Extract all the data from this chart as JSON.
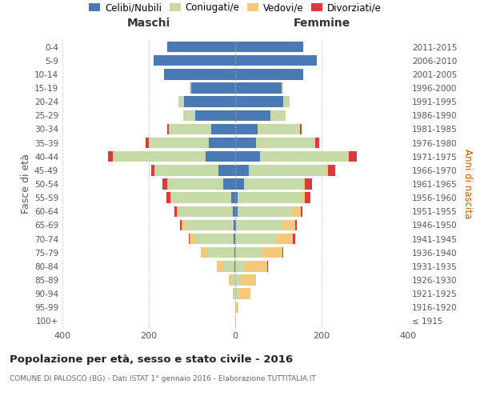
{
  "age_groups": [
    "100+",
    "95-99",
    "90-94",
    "85-89",
    "80-84",
    "75-79",
    "70-74",
    "65-69",
    "60-64",
    "55-59",
    "50-54",
    "45-49",
    "40-44",
    "35-39",
    "30-34",
    "25-29",
    "20-24",
    "15-19",
    "10-14",
    "5-9",
    "0-4"
  ],
  "birth_years": [
    "≤ 1915",
    "1916-1920",
    "1921-1925",
    "1926-1930",
    "1931-1935",
    "1936-1940",
    "1941-1945",
    "1946-1950",
    "1951-1955",
    "1956-1960",
    "1961-1965",
    "1966-1970",
    "1971-1975",
    "1976-1980",
    "1981-1985",
    "1986-1990",
    "1991-1995",
    "1996-2000",
    "2001-2005",
    "2006-2010",
    "2011-2015"
  ],
  "male": {
    "celibi": [
      0,
      0,
      0,
      0,
      2,
      2,
      3,
      4,
      6,
      10,
      28,
      38,
      68,
      62,
      55,
      92,
      118,
      102,
      165,
      188,
      158
    ],
    "coniugati": [
      0,
      0,
      3,
      10,
      25,
      62,
      90,
      112,
      125,
      138,
      128,
      148,
      215,
      138,
      98,
      28,
      14,
      4,
      0,
      0,
      0
    ],
    "vedovi": [
      0,
      0,
      2,
      5,
      15,
      15,
      12,
      8,
      4,
      2,
      2,
      1,
      0,
      0,
      0,
      0,
      0,
      0,
      0,
      0,
      0
    ],
    "divorziati": [
      0,
      0,
      0,
      0,
      0,
      0,
      2,
      4,
      6,
      10,
      10,
      8,
      12,
      8,
      4,
      0,
      0,
      0,
      0,
      0,
      0
    ]
  },
  "female": {
    "nubili": [
      0,
      0,
      0,
      0,
      0,
      0,
      0,
      2,
      5,
      6,
      20,
      32,
      58,
      48,
      52,
      82,
      112,
      108,
      158,
      188,
      158
    ],
    "coniugate": [
      0,
      2,
      8,
      14,
      22,
      62,
      95,
      108,
      128,
      148,
      138,
      178,
      205,
      138,
      98,
      34,
      14,
      4,
      0,
      0,
      0
    ],
    "vedove": [
      0,
      5,
      28,
      35,
      52,
      48,
      38,
      28,
      18,
      8,
      4,
      4,
      0,
      0,
      0,
      0,
      0,
      0,
      0,
      0,
      0
    ],
    "divorziate": [
      0,
      0,
      0,
      0,
      2,
      2,
      5,
      5,
      5,
      12,
      15,
      18,
      18,
      8,
      4,
      0,
      0,
      0,
      0,
      0,
      0
    ]
  },
  "colors": {
    "celibi": "#4a7ab5",
    "coniugati": "#c8d9a8",
    "vedovi": "#f5c97a",
    "divorziati": "#d93b3b"
  },
  "xlim": 400,
  "title": "Popolazione per età, sesso e stato civile - 2016",
  "subtitle": "COMUNE DI PALOSCO (BG) - Dati ISTAT 1° gennaio 2016 - Elaborazione TUTTITALIA.IT",
  "ylabel_left": "Fasce di età",
  "ylabel_right": "Anni di nascita",
  "label_maschi": "Maschi",
  "label_femmine": "Femmine",
  "legend_labels": [
    "Celibi/Nubili",
    "Coniugati/e",
    "Vedovi/e",
    "Divorziati/e"
  ],
  "background_color": "#ffffff",
  "grid_color": "#cccccc"
}
